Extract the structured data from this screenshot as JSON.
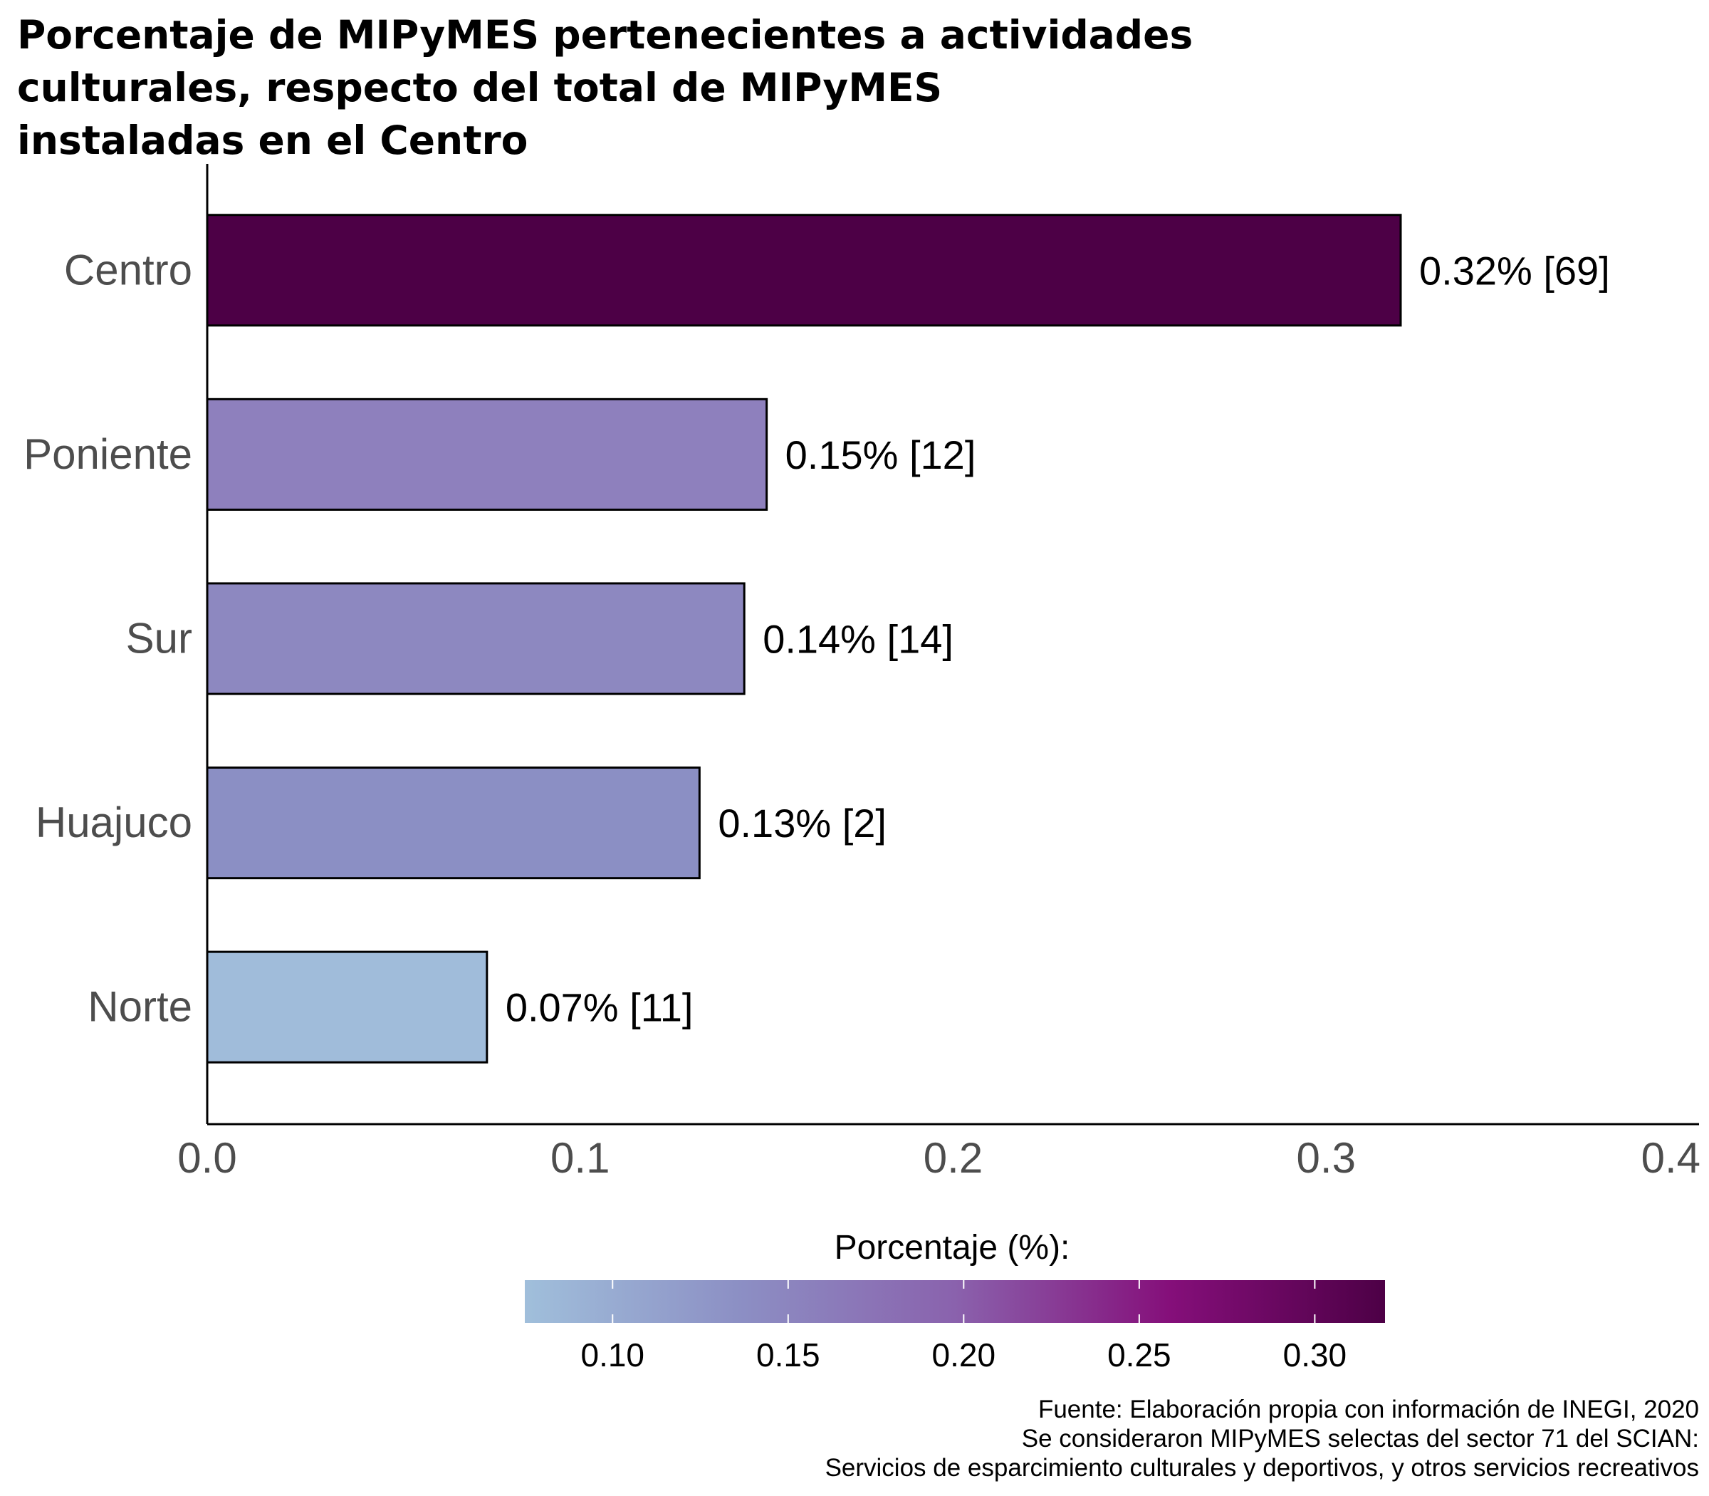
{
  "chart_data": {
    "type": "bar",
    "orientation": "horizontal",
    "title": [
      "Porcentaje de MIPyMES pertenecientes a actividades",
      "culturales, respecto del total de MIPyMES",
      "instaladas en el Centro"
    ],
    "categories": [
      "Centro",
      "Poniente",
      "Sur",
      "Huajuco",
      "Norte"
    ],
    "values": [
      0.32,
      0.15,
      0.144,
      0.132,
      0.075
    ],
    "data_labels": [
      "0.32% [69]",
      "0.15% [12]",
      "0.14% [14]",
      "0.13% [2]",
      "0.07% [11]"
    ],
    "xlim": [
      0,
      0.4
    ],
    "xticks": [
      "0.0",
      "0.1",
      "0.2",
      "0.3",
      "0.4"
    ],
    "xlabel": "",
    "ylabel": "",
    "legend": {
      "title": "Porcentaje (%):",
      "position": "bottom",
      "range": [
        0.075,
        0.32
      ],
      "ticks": [
        "0.10",
        "0.15",
        "0.20",
        "0.25",
        "0.30"
      ],
      "colors": [
        "#a0bfdb",
        "#8c8fc4",
        "#8a62ad",
        "#850f7a",
        "#4d0046"
      ]
    },
    "bar_colors": [
      "#4d0046",
      "#8e80bd",
      "#8d88c0",
      "#8b8fc4",
      "#a0bcda"
    ],
    "caption": [
      "Fuente: Elaboración propia con información de INEGI, 2020",
      "Se consideraron MIPyMES selectas del sector 71 del SCIAN:",
      "Servicios de esparcimiento culturales y deportivos, y otros servicios recreativos"
    ]
  }
}
